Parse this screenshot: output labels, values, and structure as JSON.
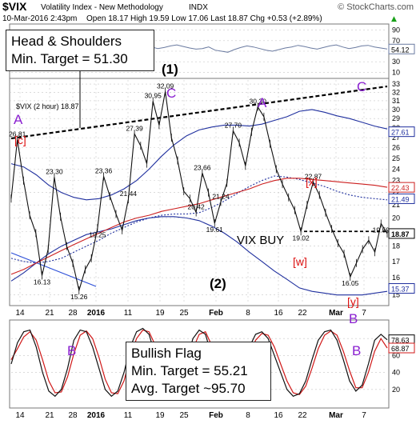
{
  "header": {
    "symbol": "$VIX",
    "name": "Volatility Index - New Methodology",
    "exchange": "INDX",
    "watermark": "© StockCharts.com",
    "datetime": "10-Mar-2016 2:43pm",
    "quote_line": "Open 18.17  High 19.59  Low 17.06  Last 18.87  Chg +0.53 (+2.89%)",
    "quote_arrow": "▲"
  },
  "annotations": {
    "hs_title": "Head & Shoulders",
    "hs_target": "Min. Target = 51.30",
    "flag_title": "Bullish Flag",
    "flag_min": "Min. Target = 55.21",
    "flag_avg": "Avg. Target ~95.70",
    "vix_buy": "VIX BUY",
    "wave_1": "(1)",
    "wave_2": "(2)",
    "wave_A_left": "A",
    "wave_A_top": "A",
    "wave_c_bracket": "[c]",
    "wave_x": "[x]",
    "wave_w": "[w]",
    "wave_y": "[y]",
    "wave_B_main": "B",
    "wave_C_rsi_left": "C",
    "wave_C_rsi_right": "C",
    "wave_B_stoch_left": "B",
    "wave_B_stoch_right": "B"
  },
  "colors": {
    "price": "#111111",
    "ma_blue": "#1f2f9e",
    "ma_red": "#cc1f1f",
    "ma_dotted": "#1f2f9e",
    "annotation_red": "#dd1111",
    "annotation_purple": "#8a1fd0",
    "rsi": "#6a7aa0",
    "stoch_fast": "#111111",
    "stoch_slow": "#d01818",
    "grid": "#c8c8c8"
  },
  "chart_data": {
    "type": "line",
    "title": "$VIX (2 hour) 18.87",
    "x_ticks": [
      "14",
      "21",
      "28",
      "2016",
      "11",
      "19",
      "25",
      "Feb",
      "8",
      "16",
      "22",
      "Mar",
      "7"
    ],
    "y_ticks": [
      15,
      16,
      17,
      18,
      19,
      20,
      21,
      22,
      23,
      24,
      25,
      26,
      27,
      28,
      29,
      30,
      31,
      32,
      33
    ],
    "ylim": [
      14.5,
      33.5
    ],
    "y_scale": "log",
    "series": [
      {
        "name": "$VIX (2 hour)",
        "values": [
          21.5,
          26.81,
          23.0,
          20.2,
          18.9,
          16.13,
          17.8,
          23.3,
          20.1,
          18.0,
          16.9,
          15.26,
          16.5,
          17.2,
          19.25,
          23.36,
          21.7,
          20.3,
          19.1,
          21.44,
          27.39,
          26.2,
          24.5,
          30.95,
          28.3,
          32.09,
          27.0,
          24.8,
          22.1,
          21.5,
          20.42,
          23.66,
          22.0,
          19.61,
          21.24,
          22.8,
          27.7,
          26.5,
          24.3,
          27.6,
          30.3,
          29.2,
          26.4,
          24.0,
          22.7,
          21.6,
          20.6,
          19.02,
          21.0,
          22.87,
          21.8,
          20.4,
          19.2,
          18.2,
          17.5,
          16.05,
          16.9,
          17.8,
          18.4,
          17.6,
          19.59,
          18.87
        ]
      },
      {
        "name": "MA upper band",
        "values": [
          24.5,
          24.2,
          23.5,
          22.6,
          22.0,
          21.6,
          21.4,
          21.5,
          21.8,
          22.3,
          23.0,
          24.0,
          25.2,
          26.3,
          27.2,
          27.8,
          28.1,
          28.3,
          28.3,
          28.2,
          28.4,
          28.8,
          29.2,
          29.8,
          30.0,
          29.7,
          29.3,
          29.0,
          28.6,
          28.2,
          27.9
        ]
      },
      {
        "name": "MA middle",
        "values": [
          17.2,
          17.0,
          16.9,
          17.0,
          17.2,
          17.6,
          18.0,
          18.4,
          18.9,
          19.3,
          19.7,
          20.0,
          20.2,
          20.3,
          20.3,
          20.4,
          20.8,
          21.3,
          21.9,
          22.5,
          23.0,
          23.4,
          23.3,
          23.1,
          22.8,
          22.5,
          22.1,
          21.8,
          21.6,
          21.5,
          21.4
        ]
      },
      {
        "name": "MA lower band",
        "values": [
          15.8,
          16.3,
          16.9,
          17.5,
          18.0,
          18.4,
          18.8,
          19.0,
          19.2,
          19.5,
          19.8,
          20.0,
          20.1,
          20.1,
          20.0,
          19.8,
          19.4,
          18.9,
          18.3,
          17.6,
          17.0,
          16.4,
          15.9,
          15.4,
          15.2,
          15.1,
          15.0,
          15.0,
          15.0,
          15.1,
          15.2
        ]
      },
      {
        "name": "MA red",
        "values": [
          16.2,
          16.5,
          16.9,
          17.3,
          17.7,
          18.1,
          18.5,
          18.9,
          19.3,
          19.7,
          20.0,
          20.2,
          20.5,
          20.7,
          20.9,
          21.1,
          21.4,
          21.7,
          22.0,
          22.3,
          22.7,
          23.0,
          23.2,
          23.2,
          23.1,
          23.0,
          22.9,
          22.8,
          22.7,
          22.6,
          22.43
        ]
      }
    ],
    "price_labels": [
      {
        "x": 1,
        "y": 26.81,
        "text": "26.81"
      },
      {
        "x": 5,
        "y": 16.13,
        "text": "16.13"
      },
      {
        "x": 7,
        "y": 23.3,
        "text": "23.30"
      },
      {
        "x": 11,
        "y": 15.26,
        "text": "15.26"
      },
      {
        "x": 14,
        "y": 19.25,
        "text": "19.25"
      },
      {
        "x": 15,
        "y": 23.36,
        "text": "23.36"
      },
      {
        "x": 19,
        "y": 21.44,
        "text": "21.44"
      },
      {
        "x": 20,
        "y": 27.39,
        "text": "27.39"
      },
      {
        "x": 23,
        "y": 30.95,
        "text": "30.95"
      },
      {
        "x": 25,
        "y": 32.09,
        "text": "32.09"
      },
      {
        "x": 30,
        "y": 20.42,
        "text": "20.42"
      },
      {
        "x": 31,
        "y": 23.66,
        "text": "23.66"
      },
      {
        "x": 33,
        "y": 19.61,
        "text": "19.61"
      },
      {
        "x": 34,
        "y": 21.24,
        "text": "21.24"
      },
      {
        "x": 36,
        "y": 27.7,
        "text": "27.70"
      },
      {
        "x": 40,
        "y": 30.3,
        "text": "30.30"
      },
      {
        "x": 47,
        "y": 19.02,
        "text": "19.02"
      },
      {
        "x": 49,
        "y": 22.87,
        "text": "22.87"
      },
      {
        "x": 55,
        "y": 16.05,
        "text": "16.05"
      },
      {
        "x": 60,
        "y": 19.59,
        "text": "19.59"
      }
    ],
    "right_axis_tags": [
      {
        "value": 27.61,
        "text": "27.61",
        "color": "#1f2f9e"
      },
      {
        "value": 22.43,
        "text": "22.43",
        "color": "#cc1f1f"
      },
      {
        "value": 21.49,
        "text": "21.49",
        "color": "#1f2f9e"
      },
      {
        "value": 18.87,
        "text": "18.87",
        "color": "#000000"
      },
      {
        "value": 15.37,
        "text": "15.37",
        "color": "#1f2f9e"
      }
    ],
    "neckline_label_value": 33,
    "rsi": {
      "ticks": [
        10,
        30,
        50,
        70,
        90
      ],
      "values": [
        60,
        55,
        58,
        62,
        64,
        60,
        57,
        59,
        63,
        61,
        58,
        56,
        60,
        62,
        64,
        63,
        60,
        58,
        62,
        66,
        64,
        61,
        58,
        55,
        57,
        60,
        62,
        59,
        56,
        54,
        55,
        58,
        52,
        50,
        48,
        53,
        57,
        60,
        58,
        55,
        52,
        50,
        53,
        56,
        58,
        61,
        59,
        56,
        54,
        57,
        60,
        62,
        58,
        55,
        57,
        60,
        61,
        58,
        56,
        54.12
      ],
      "last": "54.12"
    },
    "stochastic": {
      "ticks": [
        20,
        40,
        60,
        80
      ],
      "fast": [
        50,
        75,
        88,
        90,
        70,
        40,
        18,
        12,
        20,
        45,
        78,
        90,
        88,
        70,
        45,
        20,
        12,
        18,
        40,
        70,
        88,
        92,
        85,
        60,
        30,
        15,
        12,
        25,
        55,
        80,
        90,
        85,
        60,
        35,
        18,
        12,
        20,
        45,
        70,
        85,
        88,
        80,
        60,
        40,
        20,
        12,
        15,
        30,
        55,
        78,
        88,
        90,
        78,
        55,
        30,
        18,
        25,
        50,
        78,
        85,
        78.63
      ],
      "slow": [
        55,
        68,
        82,
        88,
        78,
        55,
        30,
        16,
        17,
        35,
        62,
        84,
        89,
        80,
        58,
        32,
        16,
        15,
        30,
        58,
        80,
        90,
        88,
        72,
        45,
        22,
        13,
        20,
        42,
        68,
        85,
        88,
        72,
        48,
        26,
        14,
        17,
        35,
        60,
        78,
        86,
        84,
        70,
        50,
        30,
        16,
        14,
        24,
        45,
        68,
        84,
        89,
        84,
        65,
        42,
        22,
        22,
        40,
        65,
        80,
        68.87
      ],
      "last_fast": "78.63",
      "last_slow": "68.87"
    }
  }
}
